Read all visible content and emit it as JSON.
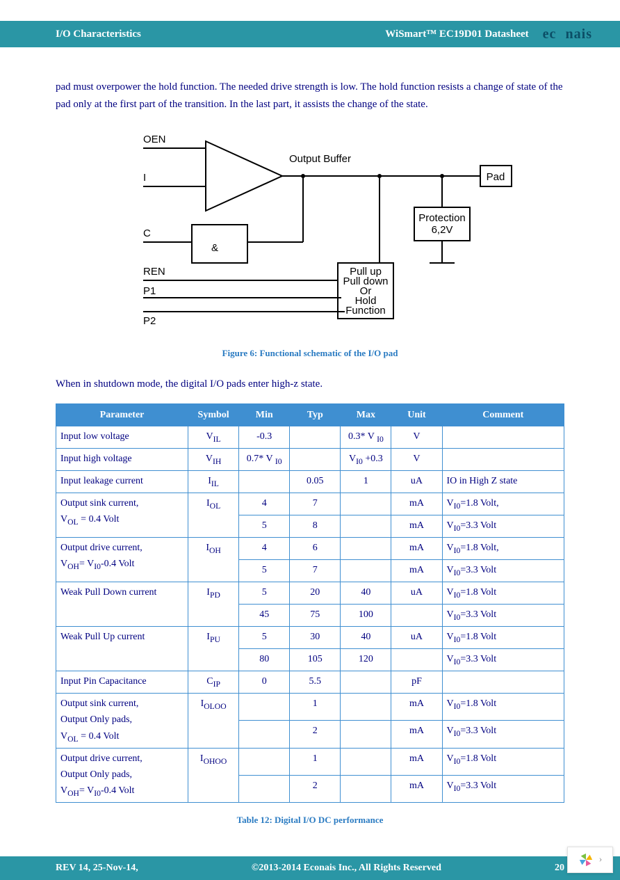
{
  "header": {
    "left": "I/O Characteristics",
    "mid": "WiSmart™ EC19D01 Datasheet",
    "logo": "econais"
  },
  "body": {
    "para": "pad must overpower the hold function. The needed drive strength is low. The hold function resists a change of state of the pad only at the first part of the transition. In the last part, it assists the change of the state.",
    "fig_caption": "Figure 6: Functional schematic of the I/O pad",
    "shutdown_line": "When in shutdown mode, the digital I/O pads enter high-z state.",
    "table_caption": "Table 12: Digital I/O DC performance"
  },
  "diagram": {
    "labels": {
      "oen": "OEN",
      "i": "I",
      "c": "C",
      "ren": "REN",
      "p1": "P1",
      "p2": "P2",
      "outbuf": "Output Buffer",
      "and": "&",
      "pull1": "Pull up",
      "pull2": "Pull down",
      "pull3": "Or",
      "pull4": "Hold",
      "pull5": "Function",
      "prot1": "Protection",
      "prot2": "6,2V",
      "pad": "Pad"
    }
  },
  "table": {
    "headers": [
      "Parameter",
      "Symbol",
      "Min",
      "Typ",
      "Max",
      "Unit",
      "Comment"
    ],
    "rows": [
      {
        "param": "Input low voltage",
        "sym": "V<sub>IL</sub>",
        "min": "-0.3",
        "typ": "",
        "max": "0.3* V <sub>I0</sub>",
        "unit": "V",
        "comment": "",
        "rows": 1
      },
      {
        "param": "Input high voltage",
        "sym": "V<sub>IH</sub>",
        "min": "0.7* V <sub>I0</sub>",
        "typ": "",
        "max": "V<sub>I0</sub> +0.3",
        "unit": "V",
        "comment": "",
        "rows": 1
      },
      {
        "param": "Input leakage current",
        "sym": "I<sub>IL</sub>",
        "min": "",
        "typ": "0.05",
        "max": "1",
        "unit": "uA",
        "comment": "IO in High Z state",
        "rows": 1
      },
      {
        "param": "Output sink current,<br>V<sub>OL</sub> = 0.4 Volt",
        "sym": "I<sub>OL</sub>",
        "sub": [
          {
            "min": "4",
            "typ": "7",
            "max": "",
            "unit": "mA",
            "comment": "V<sub>I0</sub>=1.8 Volt,"
          },
          {
            "min": "5",
            "typ": "8",
            "max": "",
            "unit": "mA",
            "comment": "V<sub>I0</sub>=3.3 Volt"
          }
        ],
        "rows": 2
      },
      {
        "param": "Output drive current,<br>V<sub>OH</sub>= V<sub>I0</sub>-0.4 Volt",
        "sym": "I<sub>OH</sub>",
        "sub": [
          {
            "min": "4",
            "typ": "6",
            "max": "",
            "unit": "mA",
            "comment": "V<sub>I0</sub>=1.8 Volt,"
          },
          {
            "min": "5",
            "typ": "7",
            "max": "",
            "unit": "mA",
            "comment": "V<sub>I0</sub>=3.3 Volt"
          }
        ],
        "rows": 2
      },
      {
        "param": "Weak Pull Down current",
        "sym": "I<sub>PD</sub>",
        "sub": [
          {
            "min": "5",
            "typ": "20",
            "max": "40",
            "unit": "uA",
            "comment": "V<sub>I0</sub>=1.8 Volt"
          },
          {
            "min": "45",
            "typ": "75",
            "max": "100",
            "unit": "",
            "comment": "V<sub>I0</sub>=3.3 Volt"
          }
        ],
        "rows": 2
      },
      {
        "param": "Weak Pull Up current",
        "sym": "I<sub>PU</sub>",
        "sub": [
          {
            "min": "5",
            "typ": "30",
            "max": "40",
            "unit": "uA",
            "comment": "V<sub>I0</sub>=1.8 Volt"
          },
          {
            "min": "80",
            "typ": "105",
            "max": "120",
            "unit": "",
            "comment": "V<sub>I0</sub>=3.3 Volt"
          }
        ],
        "rows": 2
      },
      {
        "param": "Input Pin Capacitance",
        "sym": "C<sub>IP</sub>",
        "min": "0",
        "typ": "5.5",
        "max": "",
        "unit": "pF",
        "comment": "",
        "rows": 1
      },
      {
        "param": "Output sink current,<br>Output Only pads,<br>V<sub>OL</sub> = 0.4 Volt",
        "sym": "I<sub>OLOO</sub>",
        "sub": [
          {
            "min": "",
            "typ": "1",
            "max": "",
            "unit": "mA",
            "comment": "V<sub>I0</sub>=1.8 Volt"
          },
          {
            "min": "",
            "typ": "2",
            "max": "",
            "unit": "mA",
            "comment": "V<sub>I0</sub>=3.3 Volt"
          }
        ],
        "rows": 2
      },
      {
        "param": "Output drive current,<br>Output Only pads,<br>V<sub>OH</sub>= V<sub>I0</sub>-0.4 Volt",
        "sym": "I<sub>OHOO</sub>",
        "sub": [
          {
            "min": "",
            "typ": "1",
            "max": "",
            "unit": "mA",
            "comment": "V<sub>I0</sub>=1.8 Volt"
          },
          {
            "min": "",
            "typ": "2",
            "max": "",
            "unit": "mA",
            "comment": "V<sub>I0</sub>=3.3 Volt"
          }
        ],
        "rows": 2
      }
    ]
  },
  "footer": {
    "rev": "REV 14, 25-Nov-14,",
    "copyright": "©2013-2014 Econais Inc.,  All Rights Reserved",
    "page": "20"
  }
}
